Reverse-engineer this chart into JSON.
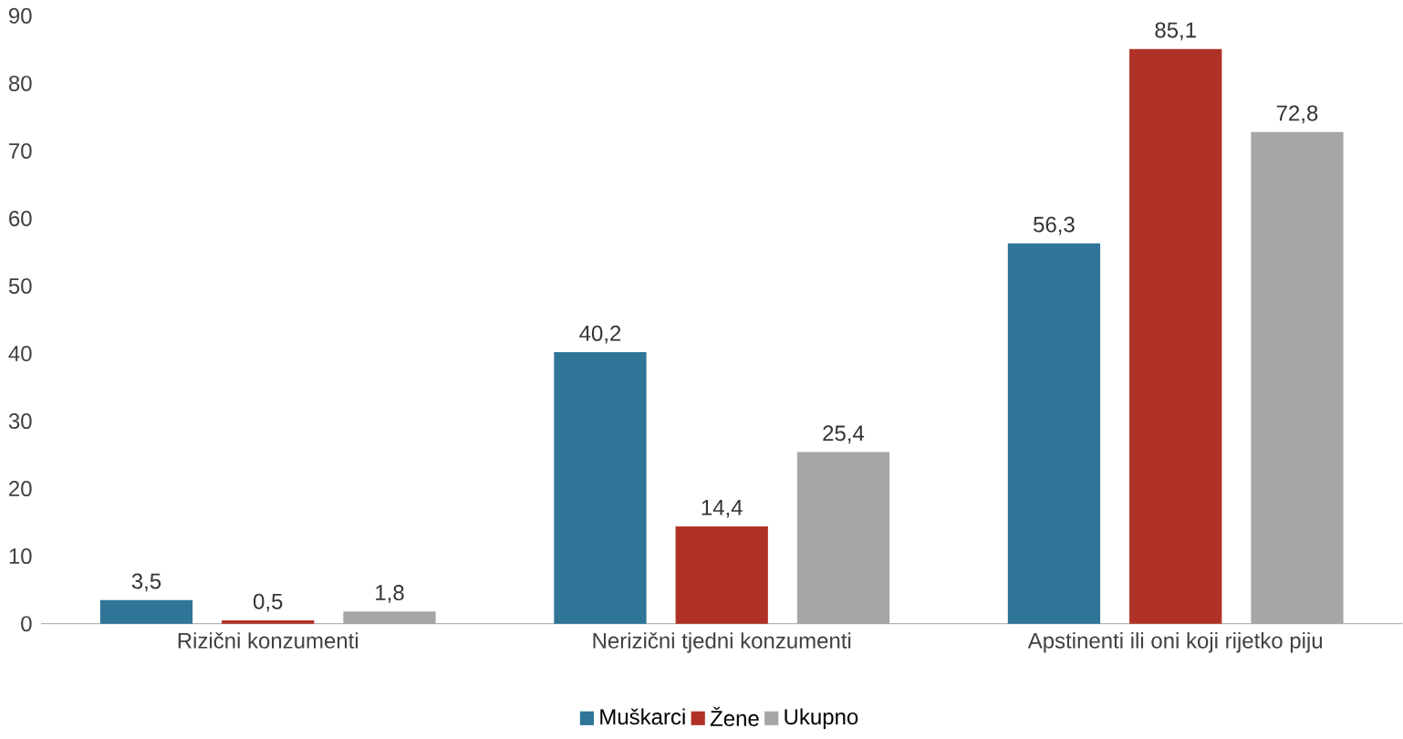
{
  "chart_data": {
    "type": "bar",
    "categories": [
      "Rizični konzumenti",
      "Nerizični tjedni konzumenti",
      "Apstinenti ili oni koji rijetko piju"
    ],
    "series": [
      {
        "name": "Muškarci",
        "color": "#2e7597",
        "values": [
          3.5,
          40.2,
          56.3
        ],
        "value_labels": [
          "3,5",
          "40,2",
          "56,3"
        ]
      },
      {
        "name": "Žene",
        "color": "#b03226",
        "values": [
          0.5,
          14.4,
          85.1
        ],
        "value_labels": [
          "0,5",
          "14,4",
          "85,1"
        ]
      },
      {
        "name": "Ukupno",
        "color": "#a6a6a6",
        "values": [
          1.8,
          25.4,
          72.8
        ],
        "value_labels": [
          "1,8",
          "25,4",
          "72,8"
        ]
      }
    ],
    "ylim": [
      0,
      90
    ],
    "yticks": [
      0,
      10,
      20,
      30,
      40,
      50,
      60,
      70,
      80,
      90
    ],
    "legend": "bottom",
    "grid": false
  }
}
